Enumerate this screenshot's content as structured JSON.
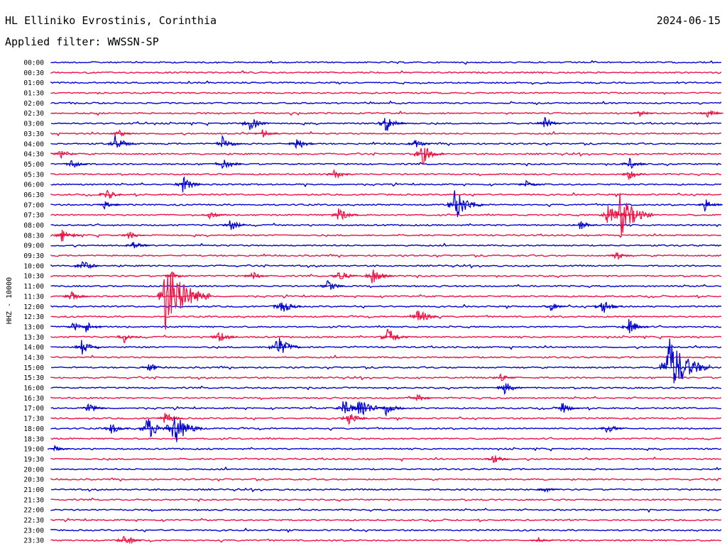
{
  "header": {
    "station": "HL Elliniko Evrostinis, Corinthia",
    "date": "2024-06-15",
    "filter_label": "Applied filter: WWSSN-SP"
  },
  "chart_data": {
    "type": "line",
    "title": "HL Elliniko Evrostinis, Corinthia",
    "ylabel": "HHZ - 10000",
    "line_times": [
      "00:00",
      "00:30",
      "01:00",
      "01:30",
      "02:00",
      "02:30",
      "03:00",
      "03:30",
      "04:00",
      "04:30",
      "05:00",
      "05:30",
      "06:00",
      "06:30",
      "07:00",
      "07:30",
      "08:00",
      "08:30",
      "09:00",
      "09:30",
      "10:00",
      "10:30",
      "11:00",
      "11:30",
      "12:00",
      "12:30",
      "13:00",
      "13:30",
      "14:00",
      "14:30",
      "15:00",
      "15:30",
      "16:00",
      "16:30",
      "17:00",
      "17:30",
      "18:00",
      "18:30",
      "19:00",
      "19:30",
      "20:00",
      "20:30",
      "21:00",
      "21:30",
      "22:00",
      "22:30",
      "23:00",
      "23:30"
    ],
    "series_colors": [
      "#0000d0",
      "#ee1144"
    ],
    "color_pattern": "alternating, starting with the first color at 00:00",
    "x_range_minutes": [
      0,
      30
    ],
    "events": [
      {
        "line": "02:30",
        "minute": 26.2,
        "amplitude": 0.6
      },
      {
        "line": "02:30",
        "minute": 29.3,
        "amplitude": 0.6
      },
      {
        "line": "03:00",
        "minute": 8.8,
        "amplitude": 1.0
      },
      {
        "line": "03:00",
        "minute": 14.9,
        "amplitude": 1.2
      },
      {
        "line": "03:00",
        "minute": 22.0,
        "amplitude": 0.8
      },
      {
        "line": "03:30",
        "minute": 2.9,
        "amplitude": 0.6
      },
      {
        "line": "03:30",
        "minute": 9.4,
        "amplitude": 0.6
      },
      {
        "line": "04:00",
        "minute": 2.8,
        "amplitude": 1.1
      },
      {
        "line": "04:00",
        "minute": 7.6,
        "amplitude": 1.0
      },
      {
        "line": "04:00",
        "minute": 10.9,
        "amplitude": 0.9
      },
      {
        "line": "04:00",
        "minute": 16.2,
        "amplitude": 0.7
      },
      {
        "line": "04:30",
        "minute": 0.3,
        "amplitude": 0.8
      },
      {
        "line": "04:30",
        "minute": 16.5,
        "amplitude": 1.4
      },
      {
        "line": "05:00",
        "minute": 0.8,
        "amplitude": 0.7
      },
      {
        "line": "05:00",
        "minute": 7.6,
        "amplitude": 1.0
      },
      {
        "line": "05:00",
        "minute": 25.8,
        "amplitude": 0.8
      },
      {
        "line": "05:30",
        "minute": 12.6,
        "amplitude": 0.7
      },
      {
        "line": "05:30",
        "minute": 25.8,
        "amplitude": 0.7
      },
      {
        "line": "06:00",
        "minute": 5.8,
        "amplitude": 1.1
      },
      {
        "line": "06:00",
        "minute": 21.2,
        "amplitude": 0.5
      },
      {
        "line": "06:30",
        "minute": 2.4,
        "amplitude": 0.8
      },
      {
        "line": "07:00",
        "minute": 2.3,
        "amplitude": 0.6
      },
      {
        "line": "07:00",
        "minute": 18.0,
        "amplitude": 2.0
      },
      {
        "line": "07:00",
        "minute": 29.2,
        "amplitude": 0.8
      },
      {
        "line": "07:30",
        "minute": 7.0,
        "amplitude": 0.6
      },
      {
        "line": "07:30",
        "minute": 12.8,
        "amplitude": 1.0
      },
      {
        "line": "07:30",
        "minute": 24.8,
        "amplitude": 1.4
      },
      {
        "line": "07:30",
        "minute": 25.4,
        "amplitude": 2.6
      },
      {
        "line": "08:00",
        "minute": 7.9,
        "amplitude": 0.9
      },
      {
        "line": "08:00",
        "minute": 23.6,
        "amplitude": 0.7
      },
      {
        "line": "08:30",
        "minute": 0.4,
        "amplitude": 0.9
      },
      {
        "line": "08:30",
        "minute": 3.4,
        "amplitude": 0.6
      },
      {
        "line": "09:00",
        "minute": 3.6,
        "amplitude": 0.7
      },
      {
        "line": "09:30",
        "minute": 25.2,
        "amplitude": 0.7
      },
      {
        "line": "10:00",
        "minute": 1.3,
        "amplitude": 0.9
      },
      {
        "line": "10:30",
        "minute": 5.3,
        "amplitude": 0.6
      },
      {
        "line": "10:30",
        "minute": 8.9,
        "amplitude": 0.7
      },
      {
        "line": "10:30",
        "minute": 12.8,
        "amplitude": 0.9
      },
      {
        "line": "10:30",
        "minute": 14.3,
        "amplitude": 1.1
      },
      {
        "line": "11:00",
        "minute": 12.3,
        "amplitude": 0.8
      },
      {
        "line": "11:30",
        "minute": 0.8,
        "amplitude": 0.7
      },
      {
        "line": "11:30",
        "minute": 5.0,
        "amplitude": 4.2
      },
      {
        "line": "12:00",
        "minute": 10.2,
        "amplitude": 1.1
      },
      {
        "line": "12:00",
        "minute": 22.3,
        "amplitude": 0.6
      },
      {
        "line": "12:00",
        "minute": 24.6,
        "amplitude": 1.0
      },
      {
        "line": "12:30",
        "minute": 16.3,
        "amplitude": 1.2
      },
      {
        "line": "13:00",
        "minute": 0.9,
        "amplitude": 0.7
      },
      {
        "line": "13:00",
        "minute": 1.5,
        "amplitude": 0.8
      },
      {
        "line": "13:00",
        "minute": 25.8,
        "amplitude": 1.0
      },
      {
        "line": "13:30",
        "minute": 3.2,
        "amplitude": 0.8
      },
      {
        "line": "13:30",
        "minute": 7.4,
        "amplitude": 1.0
      },
      {
        "line": "13:30",
        "minute": 15.0,
        "amplitude": 1.2
      },
      {
        "line": "14:00",
        "minute": 1.3,
        "amplitude": 1.0
      },
      {
        "line": "14:00",
        "minute": 10.0,
        "amplitude": 1.6
      },
      {
        "line": "15:00",
        "minute": 4.3,
        "amplitude": 0.7
      },
      {
        "line": "15:00",
        "minute": 27.5,
        "amplitude": 3.8
      },
      {
        "line": "15:30",
        "minute": 20.0,
        "amplitude": 0.6
      },
      {
        "line": "16:00",
        "minute": 20.2,
        "amplitude": 0.9
      },
      {
        "line": "16:30",
        "minute": 16.3,
        "amplitude": 0.6
      },
      {
        "line": "17:00",
        "minute": 1.6,
        "amplitude": 0.8
      },
      {
        "line": "17:00",
        "minute": 13.0,
        "amplitude": 1.1
      },
      {
        "line": "17:00",
        "minute": 13.7,
        "amplitude": 1.7
      },
      {
        "line": "17:00",
        "minute": 14.9,
        "amplitude": 1.0
      },
      {
        "line": "17:00",
        "minute": 22.8,
        "amplitude": 0.8
      },
      {
        "line": "17:30",
        "minute": 5.0,
        "amplitude": 0.9
      },
      {
        "line": "17:30",
        "minute": 13.2,
        "amplitude": 1.0
      },
      {
        "line": "18:00",
        "minute": 2.6,
        "amplitude": 0.8
      },
      {
        "line": "18:00",
        "minute": 4.2,
        "amplitude": 1.6
      },
      {
        "line": "18:00",
        "minute": 5.4,
        "amplitude": 2.2
      },
      {
        "line": "18:00",
        "minute": 24.8,
        "amplitude": 0.7
      },
      {
        "line": "19:00",
        "minute": 0.1,
        "amplitude": 0.5
      },
      {
        "line": "19:30",
        "minute": 19.7,
        "amplitude": 0.8
      },
      {
        "line": "21:00",
        "minute": 22.0,
        "amplitude": 0.5
      },
      {
        "line": "23:30",
        "minute": 3.2,
        "amplitude": 0.9
      },
      {
        "line": "23:30",
        "minute": 21.7,
        "amplitude": 0.5
      }
    ]
  }
}
